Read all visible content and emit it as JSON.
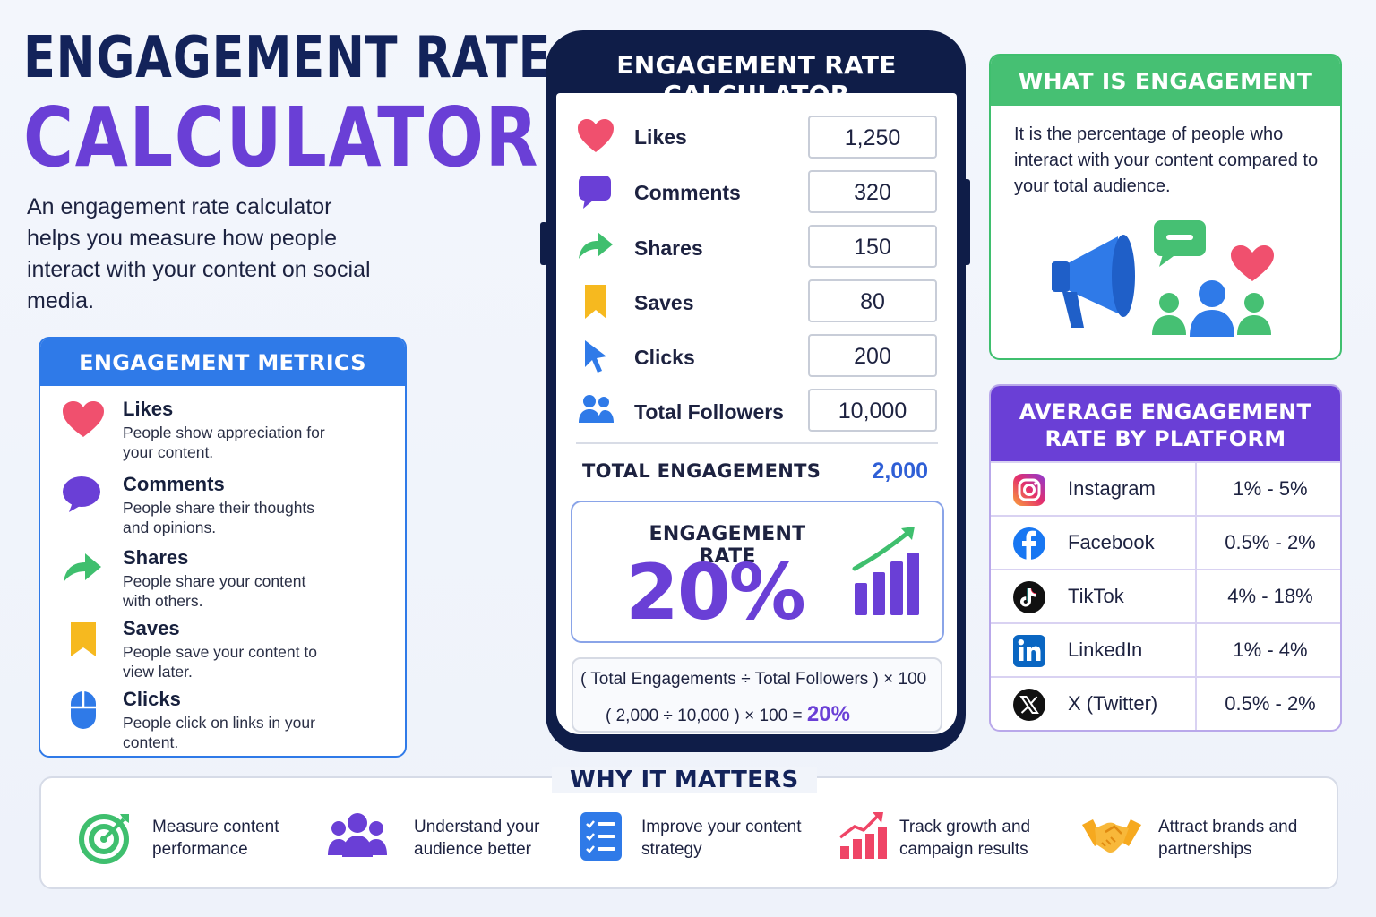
{
  "hero": {
    "title_line1": "ENGAGEMENT RATE",
    "title_line2": "CALCULATOR",
    "description": "An engagement rate calculator helps you measure how people interact with your content on social media."
  },
  "metrics": {
    "heading": "ENGAGEMENT METRICS",
    "items": [
      {
        "icon": "heart-icon",
        "title": "Likes",
        "desc": "People show appreciation for your content."
      },
      {
        "icon": "comment-icon",
        "title": "Comments",
        "desc": "People share their thoughts and opinions."
      },
      {
        "icon": "share-arrow-icon",
        "title": "Shares",
        "desc": "People share your content with others."
      },
      {
        "icon": "bookmark-icon",
        "title": "Saves",
        "desc": "People save your content to view later."
      },
      {
        "icon": "mouse-icon",
        "title": "Clicks",
        "desc": "People click on links in your content."
      }
    ]
  },
  "calculator": {
    "title": "ENGAGEMENT RATE CALCULATOR",
    "rows": [
      {
        "icon": "heart-icon",
        "label": "Likes",
        "value": "1,250"
      },
      {
        "icon": "comment-icon",
        "label": "Comments",
        "value": "320"
      },
      {
        "icon": "share-arrow-icon",
        "label": "Shares",
        "value": "150"
      },
      {
        "icon": "bookmark-icon",
        "label": "Saves",
        "value": "80"
      },
      {
        "icon": "cursor-icon",
        "label": "Clicks",
        "value": "200"
      },
      {
        "icon": "followers-icon",
        "label": "Total Followers",
        "value": "10,000"
      }
    ],
    "total_label": "TOTAL ENGAGEMENTS",
    "total_value": "2,000",
    "rate_label": "ENGAGEMENT RATE",
    "rate_value": "20%",
    "formula_line1": "( Total Engagements ÷ Total Followers )  × 100",
    "formula_line2": "( 2,000  ÷  10,000 )   ×  100    =",
    "formula_result": "20%"
  },
  "what_is": {
    "heading": "WHAT IS ENGAGEMENT RATE?",
    "text": "It is the percentage of people who interact with your content compared to your total audience."
  },
  "platforms": {
    "heading": "AVERAGE ENGAGEMENT RATE BY PLATFORM",
    "rows": [
      {
        "icon": "instagram-icon",
        "name": "Instagram",
        "rate": "1% - 5%"
      },
      {
        "icon": "facebook-icon",
        "name": "Facebook",
        "rate": "0.5% - 2%"
      },
      {
        "icon": "tiktok-icon",
        "name": "TikTok",
        "rate": "4% - 18%"
      },
      {
        "icon": "linkedin-icon",
        "name": "LinkedIn",
        "rate": "1% - 4%"
      },
      {
        "icon": "x-twitter-icon",
        "name": "X (Twitter)",
        "rate": "0.5% - 2%"
      }
    ]
  },
  "why": {
    "heading": "WHY IT MATTERS",
    "items": [
      {
        "icon": "target-icon",
        "text": "Measure content performance"
      },
      {
        "icon": "audience-icon",
        "text": "Understand your audience better"
      },
      {
        "icon": "checklist-icon",
        "text": "Improve your content strategy"
      },
      {
        "icon": "growth-chart-icon",
        "text": "Track growth and campaign results"
      },
      {
        "icon": "handshake-icon",
        "text": "Attract brands and partnerships"
      }
    ]
  },
  "colors": {
    "navy": "#13235a",
    "purple": "#6a3fd6",
    "blue": "#2f7ae8",
    "green": "#46c073"
  }
}
